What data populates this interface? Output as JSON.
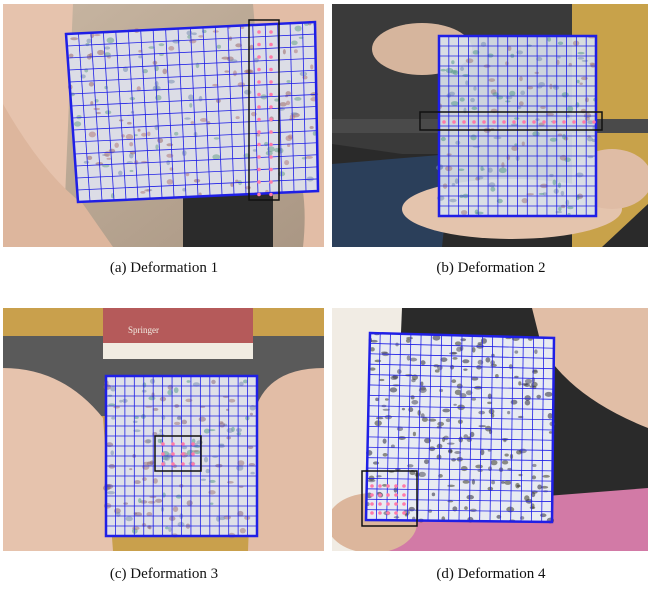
{
  "figure": {
    "panels": [
      {
        "caption": "(a) Deformation 1"
      },
      {
        "caption": "(b) Deformation 2"
      },
      {
        "caption": "(c) Deformation 3"
      },
      {
        "caption": "(d) Deformation 4"
      }
    ],
    "panel_c_book_text": "Springer",
    "colors": {
      "mesh": "#1f1fe6",
      "highlight_box": "#111111",
      "keypoints": "#ff7aa8"
    }
  }
}
